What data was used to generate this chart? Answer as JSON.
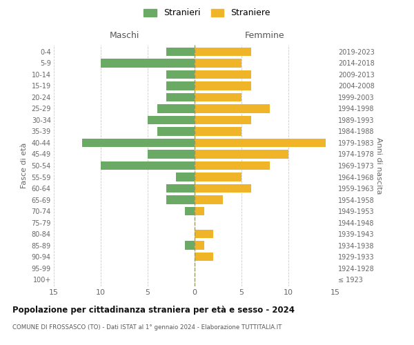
{
  "age_groups": [
    "100+",
    "95-99",
    "90-94",
    "85-89",
    "80-84",
    "75-79",
    "70-74",
    "65-69",
    "60-64",
    "55-59",
    "50-54",
    "45-49",
    "40-44",
    "35-39",
    "30-34",
    "25-29",
    "20-24",
    "15-19",
    "10-14",
    "5-9",
    "0-4"
  ],
  "birth_years": [
    "≤ 1923",
    "1924-1928",
    "1929-1933",
    "1934-1938",
    "1939-1943",
    "1944-1948",
    "1949-1953",
    "1954-1958",
    "1959-1963",
    "1964-1968",
    "1969-1973",
    "1974-1978",
    "1979-1983",
    "1984-1988",
    "1989-1993",
    "1994-1998",
    "1999-2003",
    "2004-2008",
    "2009-2013",
    "2014-2018",
    "2019-2023"
  ],
  "maschi": [
    0,
    0,
    0,
    1,
    0,
    0,
    1,
    3,
    3,
    2,
    10,
    5,
    12,
    4,
    5,
    4,
    3,
    3,
    3,
    10,
    3
  ],
  "femmine": [
    0,
    0,
    2,
    1,
    2,
    0,
    1,
    3,
    6,
    5,
    8,
    10,
    14,
    5,
    6,
    8,
    5,
    6,
    6,
    5,
    6
  ],
  "maschi_color": "#6aaa64",
  "femmine_color": "#f0b429",
  "title": "Popolazione per cittadinanza straniera per età e sesso - 2024",
  "subtitle": "COMUNE DI FROSSASCO (TO) - Dati ISTAT al 1° gennaio 2024 - Elaborazione TUTTITALIA.IT",
  "left_label": "Maschi",
  "right_label": "Femmine",
  "ylabel": "Fasce di età",
  "ylabel_right": "Anni di nascita",
  "legend_maschi": "Stranieri",
  "legend_femmine": "Straniere",
  "xlim": 15,
  "background_color": "#ffffff",
  "grid_color": "#cccccc"
}
